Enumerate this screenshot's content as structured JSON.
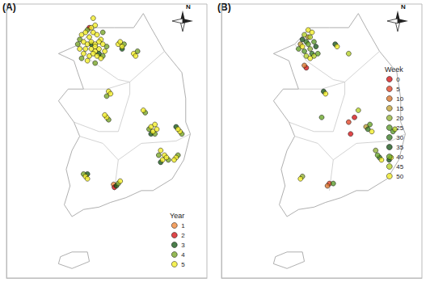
{
  "chart_data": [
    {
      "type": "scatter",
      "title": "(A)",
      "legend_title": "Year",
      "annotations": [
        "N"
      ],
      "xlim": [
        124.8,
        130.0
      ],
      "ylim": [
        33.0,
        38.8
      ],
      "tick_labels": false,
      "grid": false,
      "legend": "lower right",
      "marker": "circle",
      "series": [
        {
          "name": "1",
          "color": "#f08a3c",
          "x": [
            127.58
          ],
          "values": [
            34.98
          ]
        },
        {
          "name": "2",
          "color": "#d7191c",
          "x": [
            127.6,
            126.95
          ],
          "values": [
            34.92,
            38.3
          ]
        },
        {
          "name": "3",
          "color": "#1e5e1e",
          "x": [
            127.0,
            127.2,
            128.55,
            128.8,
            126.9,
            127.8,
            129.2,
            127.65
          ],
          "values": [
            37.95,
            37.75,
            36.05,
            35.45,
            35.2,
            37.85,
            36.2,
            34.95
          ]
        },
        {
          "name": "4",
          "color": "#7aa82a",
          "x": [
            126.7,
            126.9,
            127.3,
            127.4,
            126.75,
            127.1,
            127.3,
            126.65,
            127.85,
            128.2,
            127.4,
            127.45,
            128.4,
            128.5,
            128.65,
            129.35,
            128.75,
            129.0,
            129.25,
            126.8,
            127.7
          ],
          "values": [
            38.05,
            38.25,
            38.2,
            37.9,
            37.65,
            37.55,
            37.7,
            37.95,
            37.95,
            37.8,
            36.85,
            36.35,
            36.5,
            36.15,
            36.05,
            36.05,
            35.6,
            35.5,
            35.6,
            35.2,
            35.0
          ]
        },
        {
          "name": "5",
          "color": "#f2ee2a",
          "x": [
            126.75,
            126.85,
            126.95,
            127.05,
            127.15,
            127.25,
            126.8,
            126.9,
            127.0,
            127.1,
            127.2,
            127.3,
            126.7,
            126.85,
            127.0,
            127.1,
            127.2,
            127.35,
            126.8,
            126.95,
            127.05,
            127.15,
            127.25,
            126.9,
            127.0,
            127.1,
            127.05,
            127.1,
            127.7,
            127.8,
            127.75,
            128.1,
            128.15,
            127.45,
            127.5,
            127.4,
            127.35,
            128.35,
            128.55,
            128.65,
            128.6,
            128.7,
            129.3,
            129.25,
            128.8,
            128.9,
            128.85,
            128.95,
            129.2,
            129.15,
            126.85,
            126.9,
            127.75
          ],
          "values": [
            38.15,
            38.2,
            38.1,
            38.2,
            38.15,
            38.05,
            38.0,
            37.95,
            38.0,
            37.95,
            38.0,
            37.95,
            37.85,
            37.85,
            37.85,
            37.8,
            37.85,
            37.8,
            37.75,
            37.7,
            37.75,
            37.7,
            37.65,
            37.6,
            38.3,
            38.35,
            38.5,
            37.9,
            37.95,
            37.9,
            38.0,
            37.75,
            37.7,
            36.95,
            36.9,
            36.4,
            36.45,
            36.55,
            36.2,
            36.25,
            36.1,
            36.15,
            36.1,
            36.15,
            35.7,
            35.6,
            35.5,
            35.55,
            35.55,
            35.5,
            35.15,
            35.1,
            35.05
          ]
        }
      ]
    },
    {
      "type": "scatter",
      "title": "(B)",
      "legend_title": "Week",
      "annotations": [
        "N"
      ],
      "xlim": [
        124.8,
        130.0
      ],
      "ylim": [
        33.0,
        38.8
      ],
      "tick_labels": false,
      "grid": false,
      "legend": "right",
      "marker": "circle",
      "series": [
        {
          "name": "0",
          "color": "#d7191c",
          "x": [
            127.0,
            128.25,
            128.15
          ],
          "values": [
            37.45,
            36.4,
            36.05
          ]
        },
        {
          "name": "5",
          "color": "#e2472b",
          "x": [
            127.6,
            128.1
          ],
          "values": [
            35.0,
            36.3
          ]
        },
        {
          "name": "10",
          "color": "#d9762f",
          "x": [
            126.95,
            127.55
          ],
          "values": [
            37.5,
            34.95
          ]
        },
        {
          "name": "15",
          "color": "#c2a23a",
          "x": [
            126.85,
            127.05,
            128.55
          ],
          "values": [
            37.95,
            38.1,
            36.2
          ]
        },
        {
          "name": "20",
          "color": "#93b33a",
          "x": [
            127.1,
            128.8,
            126.9
          ],
          "values": [
            37.85,
            35.7,
            35.15
          ]
        },
        {
          "name": "25",
          "color": "#5f9c30",
          "x": [
            126.95,
            127.2,
            129.25,
            127.7
          ],
          "values": [
            37.8,
            38.0,
            36.1,
            35.0
          ]
        },
        {
          "name": "30",
          "color": "#3f802a",
          "x": [
            127.0,
            127.15,
            128.6,
            128.9
          ],
          "values": [
            38.0,
            37.75,
            36.15,
            35.55
          ]
        },
        {
          "name": "35",
          "color": "#1f5a1f",
          "x": [
            126.9,
            127.25,
            127.75,
            129.15,
            127.45
          ],
          "values": [
            38.05,
            37.9,
            37.95,
            35.5,
            36.95
          ]
        },
        {
          "name": "40",
          "color": "#6aa62a",
          "x": [
            126.8,
            127.05,
            127.3,
            128.65,
            128.85,
            127.4
          ],
          "values": [
            37.85,
            37.95,
            37.75,
            36.25,
            35.6,
            36.4
          ]
        },
        {
          "name": "45",
          "color": "#b6d22c",
          "x": [
            126.95,
            127.1,
            127.2,
            127.0,
            128.1,
            129.3,
            128.35
          ],
          "values": [
            38.15,
            38.1,
            37.7,
            37.7,
            37.75,
            36.15,
            36.55
          ]
        },
        {
          "name": "50",
          "color": "#f2ee2a",
          "x": [
            127.05,
            127.15,
            127.1,
            126.9,
            127.8,
            128.7,
            128.95,
            129.2,
            126.85,
            127.5
          ],
          "values": [
            38.25,
            38.2,
            37.65,
            37.9,
            37.9,
            36.1,
            35.5,
            35.55,
            35.1,
            36.9
          ]
        }
      ]
    }
  ]
}
